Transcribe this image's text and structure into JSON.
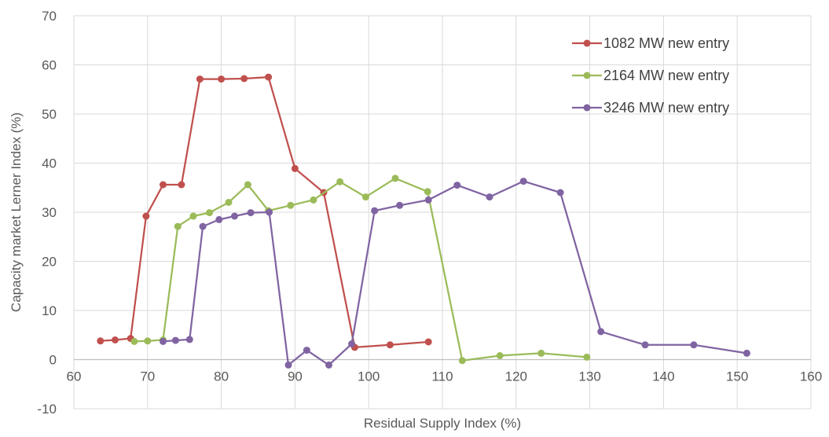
{
  "chart_data": {
    "type": "line",
    "title": "",
    "xlabel": "Residual Supply Index (%)",
    "ylabel": "Capacity market Lerner Index (%)",
    "xlim": [
      60,
      160
    ],
    "ylim": [
      -10,
      70
    ],
    "x_ticks": [
      60,
      70,
      80,
      90,
      100,
      110,
      120,
      130,
      140,
      150,
      160
    ],
    "y_ticks": [
      -10,
      0,
      10,
      20,
      30,
      40,
      50,
      60,
      70
    ],
    "grid": true,
    "legend_position": "top-right",
    "series": [
      {
        "name": "1082 MW new entry",
        "color": "#C0504D",
        "points": [
          [
            63.6,
            3.8
          ],
          [
            65.6,
            4.0
          ],
          [
            67.7,
            4.3
          ],
          [
            69.8,
            29.2
          ],
          [
            72.1,
            35.6
          ],
          [
            74.6,
            35.6
          ],
          [
            77.1,
            57.1
          ],
          [
            80.0,
            57.1
          ],
          [
            83.1,
            57.2
          ],
          [
            86.4,
            57.5
          ],
          [
            90.0,
            38.9
          ],
          [
            93.9,
            34.0
          ],
          [
            98.1,
            2.5
          ],
          [
            102.9,
            3.0
          ],
          [
            108.1,
            3.6
          ]
        ]
      },
      {
        "name": "2164 MW new entry",
        "color": "#9BBB59",
        "points": [
          [
            68.2,
            3.7
          ],
          [
            70.0,
            3.8
          ],
          [
            72.1,
            4.0
          ],
          [
            74.1,
            27.1
          ],
          [
            76.2,
            29.2
          ],
          [
            78.4,
            29.9
          ],
          [
            81.0,
            32.0
          ],
          [
            83.6,
            35.6
          ],
          [
            86.4,
            30.3
          ],
          [
            89.4,
            31.4
          ],
          [
            92.5,
            32.5
          ],
          [
            96.1,
            36.2
          ],
          [
            99.6,
            33.1
          ],
          [
            103.6,
            36.9
          ],
          [
            108.0,
            34.2
          ],
          [
            112.7,
            -0.2
          ],
          [
            117.8,
            0.8
          ],
          [
            123.4,
            1.3
          ],
          [
            129.6,
            0.5
          ]
        ]
      },
      {
        "name": "3246 MW new entry",
        "color": "#8064A2",
        "points": [
          [
            72.1,
            3.7
          ],
          [
            73.8,
            3.9
          ],
          [
            75.7,
            4.1
          ],
          [
            77.5,
            27.1
          ],
          [
            79.7,
            28.5
          ],
          [
            81.8,
            29.2
          ],
          [
            84.0,
            29.9
          ],
          [
            86.5,
            30.0
          ],
          [
            89.1,
            -1.1
          ],
          [
            91.6,
            1.9
          ],
          [
            94.6,
            -1.1
          ],
          [
            97.7,
            3.2
          ],
          [
            100.8,
            30.3
          ],
          [
            104.2,
            31.4
          ],
          [
            108.1,
            32.5
          ],
          [
            112.0,
            35.5
          ],
          [
            116.4,
            33.1
          ],
          [
            121.0,
            36.3
          ],
          [
            126.0,
            34.0
          ],
          [
            131.5,
            5.7
          ],
          [
            137.5,
            3.0
          ],
          [
            144.1,
            3.0
          ],
          [
            151.3,
            1.3
          ]
        ]
      }
    ]
  }
}
